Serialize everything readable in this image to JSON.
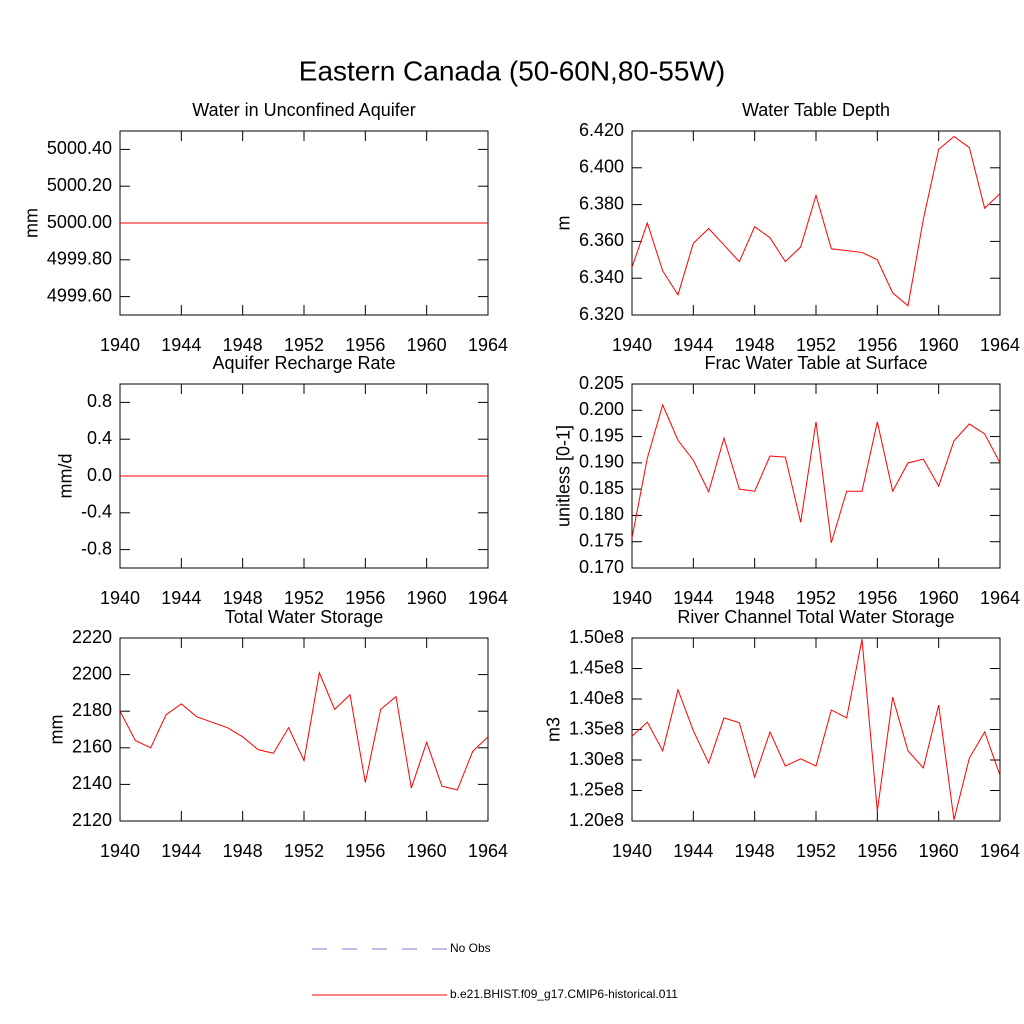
{
  "title": "Eastern Canada (50-60N,80-55W)",
  "legend": [
    {
      "name": "No Obs",
      "color": "#7a7acc",
      "dashed": true
    },
    {
      "name": "b.e21.BHIST.f09_g17.CMIP6-historical.011",
      "color": "#ff0000",
      "dashed": false
    }
  ],
  "chart_data": [
    {
      "type": "line",
      "title": "Water in Unconfined Aquifer",
      "y_label": "mm",
      "color": "#ff0000",
      "x": [
        1940,
        1941,
        1942,
        1943,
        1944,
        1945,
        1946,
        1947,
        1948,
        1949,
        1950,
        1951,
        1952,
        1953,
        1954,
        1955,
        1956,
        1957,
        1958,
        1959,
        1960,
        1961,
        1962,
        1963,
        1964
      ],
      "values": [
        5000,
        5000,
        5000,
        5000,
        5000,
        5000,
        5000,
        5000,
        5000,
        5000,
        5000,
        5000,
        5000,
        5000,
        5000,
        5000,
        5000,
        5000,
        5000,
        5000,
        5000,
        5000,
        5000,
        5000,
        5000
      ],
      "xlim": [
        1940,
        1964
      ],
      "xticks": [
        1940,
        1944,
        1948,
        1952,
        1956,
        1960,
        1964
      ],
      "ylim": [
        4999.5,
        5000.5
      ],
      "yticks": [
        {
          "value": 4999.6,
          "label": "4999.60"
        },
        {
          "value": 4999.8,
          "label": "4999.80"
        },
        {
          "value": 5000,
          "label": "5000.00"
        },
        {
          "value": 5000.2,
          "label": "5000.20"
        },
        {
          "value": 5000.4,
          "label": "5000.40"
        }
      ]
    },
    {
      "type": "line",
      "title": "Water Table Depth",
      "y_label": "m",
      "color": "#ff0000",
      "x": [
        1940,
        1941,
        1942,
        1943,
        1944,
        1945,
        1946,
        1947,
        1948,
        1949,
        1950,
        1951,
        1952,
        1953,
        1954,
        1955,
        1956,
        1957,
        1958,
        1959,
        1960,
        1961,
        1962,
        1963,
        1964
      ],
      "values": [
        6.346,
        6.37,
        6.344,
        6.331,
        6.359,
        6.367,
        6.358,
        6.349,
        6.368,
        6.362,
        6.349,
        6.357,
        6.385,
        6.356,
        6.355,
        6.354,
        6.35,
        6.332,
        6.325,
        6.372,
        6.41,
        6.417,
        6.411,
        6.378,
        6.386
      ],
      "xlim": [
        1940,
        1964
      ],
      "xticks": [
        1940,
        1944,
        1948,
        1952,
        1956,
        1960,
        1964
      ],
      "ylim": [
        6.32,
        6.42
      ],
      "yticks": [
        {
          "value": 6.32,
          "label": "6.320"
        },
        {
          "value": 6.34,
          "label": "6.340"
        },
        {
          "value": 6.36,
          "label": "6.360"
        },
        {
          "value": 6.38,
          "label": "6.380"
        },
        {
          "value": 6.4,
          "label": "6.400"
        },
        {
          "value": 6.42,
          "label": "6.420"
        }
      ]
    },
    {
      "type": "line",
      "title": "Aquifer Recharge Rate",
      "y_label": "mm/d",
      "color": "#ff0000",
      "x": [
        1940,
        1941,
        1942,
        1943,
        1944,
        1945,
        1946,
        1947,
        1948,
        1949,
        1950,
        1951,
        1952,
        1953,
        1954,
        1955,
        1956,
        1957,
        1958,
        1959,
        1960,
        1961,
        1962,
        1963,
        1964
      ],
      "values": [
        0,
        0,
        0,
        0,
        0,
        0,
        0,
        0,
        0,
        0,
        0,
        0,
        0,
        0,
        0,
        0,
        0,
        0,
        0,
        0,
        0,
        0,
        0,
        0,
        0
      ],
      "xlim": [
        1940,
        1964
      ],
      "xticks": [
        1940,
        1944,
        1948,
        1952,
        1956,
        1960,
        1964
      ],
      "ylim": [
        -1,
        1
      ],
      "yticks": [
        -0.8,
        -0.4,
        {
          "value": 0,
          "label": "0.0"
        },
        0.4,
        0.8
      ]
    },
    {
      "type": "line",
      "title": "Frac Water Table at Surface",
      "y_label": "unitless [0-1]",
      "color": "#ff0000",
      "x": [
        1940,
        1941,
        1942,
        1943,
        1944,
        1945,
        1946,
        1947,
        1948,
        1949,
        1950,
        1951,
        1952,
        1953,
        1954,
        1955,
        1956,
        1957,
        1958,
        1959,
        1960,
        1961,
        1962,
        1963,
        1964
      ],
      "values": [
        0.1757,
        0.1909,
        0.201,
        0.1943,
        0.1905,
        0.1845,
        0.1947,
        0.185,
        0.1846,
        0.1913,
        0.1911,
        0.1787,
        0.1978,
        0.1748,
        0.1846,
        0.1846,
        0.1978,
        0.1846,
        0.19,
        0.1907,
        0.1856,
        0.1942,
        0.1974,
        0.1955,
        0.19
      ],
      "xlim": [
        1940,
        1964
      ],
      "xticks": [
        1940,
        1944,
        1948,
        1952,
        1956,
        1960,
        1964
      ],
      "ylim": [
        0.17,
        0.205
      ],
      "yticks": [
        {
          "value": 0.17,
          "label": "0.170"
        },
        0.175,
        {
          "value": 0.18,
          "label": "0.180"
        },
        0.185,
        {
          "value": 0.19,
          "label": "0.190"
        },
        0.195,
        {
          "value": 0.2,
          "label": "0.200"
        },
        0.205
      ]
    },
    {
      "type": "line",
      "title": "Total Water Storage",
      "y_label": "mm",
      "color": "#ff0000",
      "x": [
        1940,
        1941,
        1942,
        1943,
        1944,
        1945,
        1946,
        1947,
        1948,
        1949,
        1950,
        1951,
        1952,
        1953,
        1954,
        1955,
        1956,
        1957,
        1958,
        1959,
        1960,
        1961,
        1962,
        1963,
        1964
      ],
      "values": [
        2180,
        2164,
        2160,
        2178,
        2184,
        2177,
        2174,
        2171,
        2166,
        2159,
        2157,
        2171,
        2153,
        2201,
        2181,
        2189,
        2141,
        2181,
        2188,
        2138,
        2163,
        2139,
        2137,
        2158,
        2166
      ],
      "xlim": [
        1940,
        1964
      ],
      "xticks": [
        1940,
        1944,
        1948,
        1952,
        1956,
        1960,
        1964
      ],
      "ylim": [
        2120,
        2220
      ],
      "yticks": [
        2120,
        2140,
        2160,
        2180,
        2200,
        2220
      ]
    },
    {
      "type": "line",
      "title": "River Channel Total Water Storage",
      "y_label": "m3",
      "color": "#ff0000",
      "x": [
        1940,
        1941,
        1942,
        1943,
        1944,
        1945,
        1946,
        1947,
        1948,
        1949,
        1950,
        1951,
        1952,
        1953,
        1954,
        1955,
        1956,
        1957,
        1958,
        1959,
        1960,
        1961,
        1962,
        1963,
        1964
      ],
      "values": [
        133900000,
        136200000,
        131500000,
        141500000,
        134800000,
        129500000,
        136900000,
        136100000,
        127200000,
        134600000,
        129000000,
        130200000,
        129000000,
        138200000,
        136900000,
        149800000,
        121600000,
        140300000,
        131500000,
        128700000,
        139000000,
        120200000,
        130300000,
        134600000,
        127500000
      ],
      "xlim": [
        1940,
        1964
      ],
      "xticks": [
        1940,
        1944,
        1948,
        1952,
        1956,
        1960,
        1964
      ],
      "ylim": [
        120000000,
        150000000
      ],
      "yticks": [
        {
          "value": 120000000,
          "label": "1.20e8"
        },
        {
          "value": 125000000,
          "label": "1.25e8"
        },
        {
          "value": 130000000,
          "label": "1.30e8"
        },
        {
          "value": 135000000,
          "label": "1.35e8"
        },
        {
          "value": 140000000,
          "label": "1.40e8"
        },
        {
          "value": 145000000,
          "label": "1.45e8"
        },
        {
          "value": 150000000,
          "label": "1.50e8"
        }
      ]
    }
  ]
}
